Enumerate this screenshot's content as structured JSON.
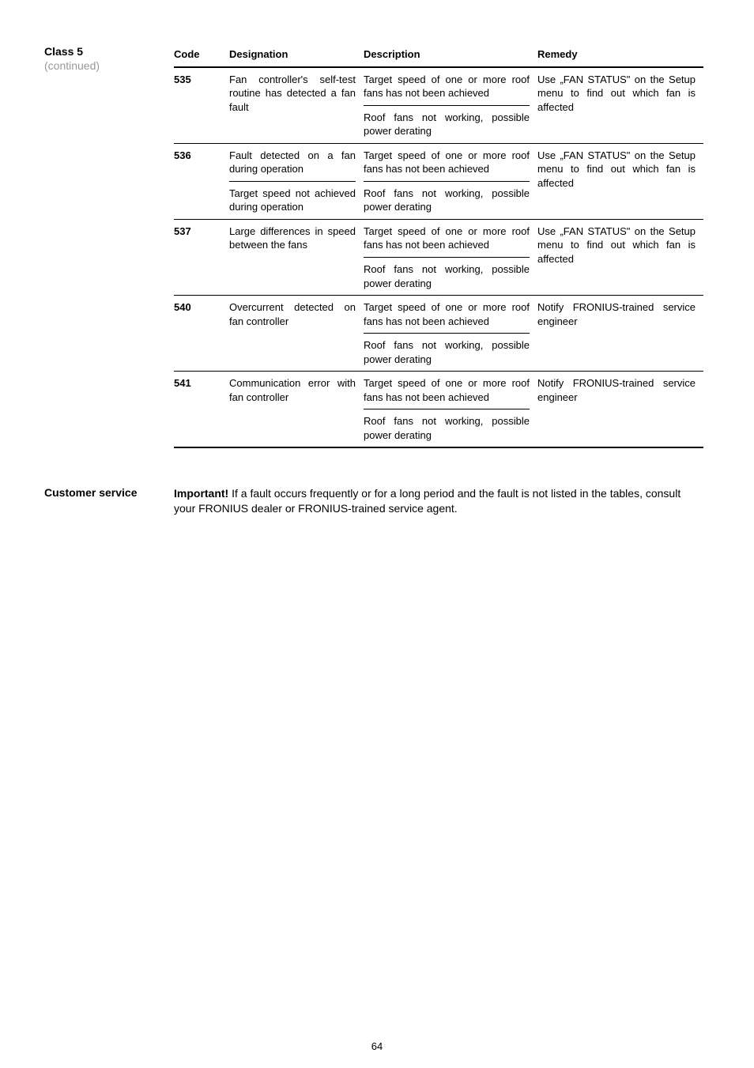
{
  "side": {
    "title": "Class 5",
    "subtitle": "(continued)"
  },
  "table": {
    "headers": {
      "code": "Code",
      "designation": "Designation",
      "description": "Description",
      "remedy": "Remedy"
    },
    "rows": [
      {
        "code": "535",
        "designation": "Fan controller's self-test routine has detected a fan fault",
        "description1": "Target speed of one or more roof fans has not been achieved",
        "description2": "Roof fans not working, possible power derating",
        "remedy": "Use „FAN STATUS\" on the Setup menu to find out which fan is affected"
      },
      {
        "code": "536",
        "designation1": "Fault detected on a fan during operation",
        "designation2": "Target speed not achieved during operation",
        "description1": "Target speed of one or more roof fans has not been achieved",
        "description2": "Roof fans not working, possible power derating",
        "remedy": "Use „FAN STATUS\" on the Setup menu to find out which fan is affected"
      },
      {
        "code": "537",
        "designation": "Large differences in speed between the fans",
        "description1": "Target speed of one or more roof fans has not been achieved",
        "description2": "Roof fans not working, possible power derating",
        "remedy": "Use „FAN STATUS\" on the Setup menu to find out which fan is affected"
      },
      {
        "code": "540",
        "designation": "Overcurrent detected on fan controller",
        "description1": "Target speed of one or more roof fans has not been achieved",
        "description2": "Roof fans not working, possible power derating",
        "remedy": "Notify FRONIUS-trained service engineer"
      },
      {
        "code": "541",
        "designation": "Communication error with fan controller",
        "description1": "Target speed of one or more roof fans has not been achieved",
        "description2": "Roof fans not working, possible power derating",
        "remedy": "Notify FRONIUS-trained service engineer"
      }
    ]
  },
  "customer_service": {
    "label": "Customer service",
    "bold": "Important!",
    "text": " If a fault occurs frequently or for a long period and the fault is not listed in the tables, consult your FRONIUS dealer or FRONIUS-trained service agent."
  },
  "page_number": "64"
}
